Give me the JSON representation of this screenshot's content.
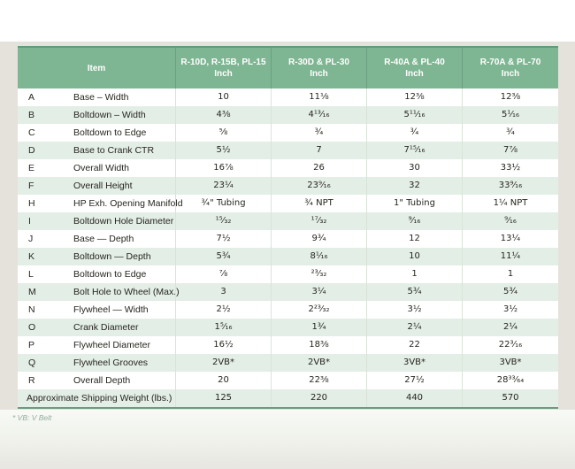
{
  "table": {
    "columns": [
      {
        "label": "Item",
        "sub": ""
      },
      {
        "label": "R-10D, R-15B, PL-15",
        "sub": "Inch"
      },
      {
        "label": "R-30D & PL-30",
        "sub": "Inch"
      },
      {
        "label": "R-40A & PL-40",
        "sub": "Inch"
      },
      {
        "label": "R-70A & PL-70",
        "sub": "Inch"
      }
    ],
    "rows": [
      {
        "key": "A",
        "item": "Base – Width",
        "values": [
          "10",
          "11⅛",
          "12⅜",
          "12⅜"
        ]
      },
      {
        "key": "B",
        "item": "Boltdown – Width",
        "values": [
          "4⅜",
          "4¹³⁄₁₆",
          "5¹¹⁄₁₆",
          "5¹⁄₁₆"
        ]
      },
      {
        "key": "C",
        "item": "Boltdown to Edge",
        "values": [
          "⅝",
          "¾",
          "¾",
          "¾"
        ]
      },
      {
        "key": "D",
        "item": "Base to Crank CTR",
        "values": [
          "5½",
          "7",
          "7¹⁵⁄₁₆",
          "7⅞"
        ]
      },
      {
        "key": "E",
        "item": "Overall Width",
        "values": [
          "16⅞",
          "26",
          "30",
          "33½"
        ]
      },
      {
        "key": "F",
        "item": "Overall Height",
        "values": [
          "23¼",
          "23⁹⁄₁₆",
          "32",
          "33⁹⁄₁₆"
        ]
      },
      {
        "key": "H",
        "item": "HP Exh. Opening Manifold",
        "values": [
          "¾\" Tubing",
          "¾ NPT",
          "1\" Tubing",
          "1¼ NPT"
        ]
      },
      {
        "key": "I",
        "item": "Boltdown Hole Diameter",
        "values": [
          "¹⁵⁄₃₂",
          "¹⁷⁄₃₂",
          "⁹⁄₁₆",
          "⁹⁄₁₆"
        ]
      },
      {
        "key": "J",
        "item": "Base — Depth",
        "values": [
          "7½",
          "9¾",
          "12",
          "13¼"
        ]
      },
      {
        "key": "K",
        "item": "Boltdown — Depth",
        "values": [
          "5¾",
          "8¹⁄₁₆",
          "10",
          "11¼"
        ]
      },
      {
        "key": "L",
        "item": "Boltdown to Edge",
        "values": [
          "⅞",
          "²³⁄₃₂",
          "1",
          "1"
        ]
      },
      {
        "key": "M",
        "item": "Bolt Hole to Wheel (Max.)",
        "values": [
          "3",
          "3¼",
          "5¾",
          "5¾"
        ]
      },
      {
        "key": "N",
        "item": "Flywheel — Width",
        "values": [
          "2½",
          "2²³⁄₃₂",
          "3½",
          "3½"
        ]
      },
      {
        "key": "O",
        "item": "Crank Diameter",
        "values": [
          "1⁵⁄₁₆",
          "1¾",
          "2¼",
          "2¼"
        ]
      },
      {
        "key": "P",
        "item": "Flywheel Diameter",
        "values": [
          "16½",
          "18⅜",
          "22",
          "22³⁄₁₆"
        ]
      },
      {
        "key": "Q",
        "item": "Flywheel Grooves",
        "values": [
          "2VB*",
          "2VB*",
          "3VB*",
          "3VB*"
        ]
      },
      {
        "key": "R",
        "item": "Overall Depth",
        "values": [
          "20",
          "22⅜",
          "27½",
          "28³³⁄₆₄"
        ]
      },
      {
        "key": "",
        "item": "Approximate Shipping Weight (lbs.)",
        "values": [
          "125",
          "220",
          "440",
          "570"
        ]
      }
    ],
    "footnote": "* VB: V Belt"
  },
  "colors": {
    "header_green": "#7eb592",
    "header_top_edge": "#5f9c7b",
    "stripe_green": "#e3eee6",
    "table_bottom_border": "#6d9a80",
    "background_gray": "#e5e2dc",
    "footnote_green": "#93ac9e"
  }
}
